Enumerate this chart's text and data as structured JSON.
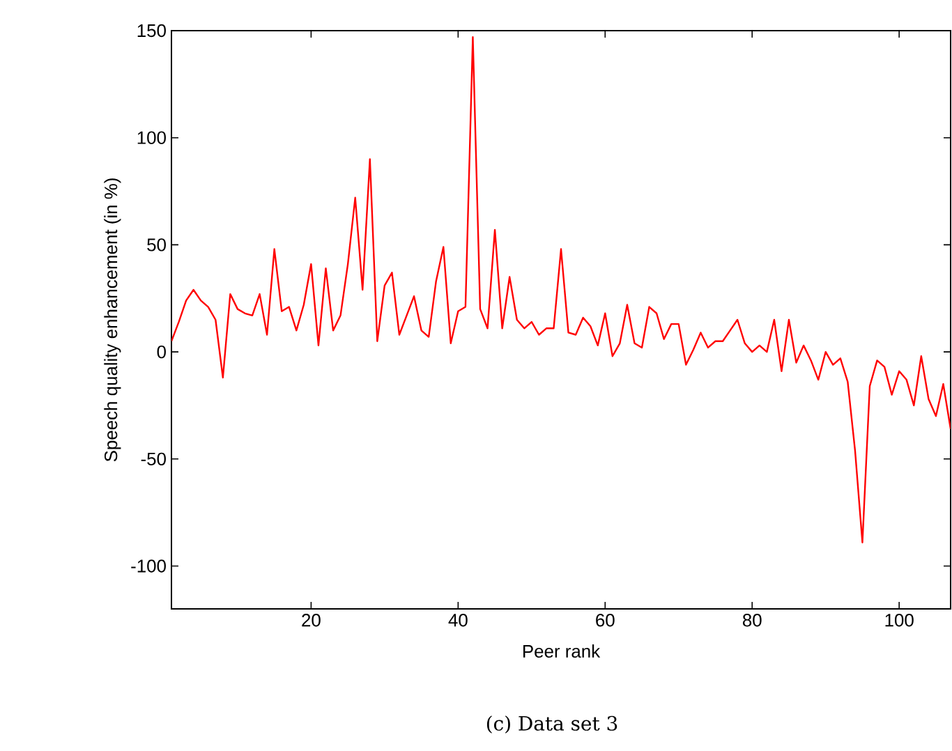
{
  "chart_data": {
    "type": "line",
    "xlabel": "Peer rank",
    "ylabel": "Speech quality enhancement (in %)",
    "annotations": [
      "(c)  Data set 3"
    ],
    "x": [
      1,
      2,
      3,
      4,
      5,
      6,
      7,
      8,
      9,
      10,
      11,
      12,
      13,
      14,
      15,
      16,
      17,
      18,
      19,
      20,
      21,
      22,
      23,
      24,
      25,
      26,
      27,
      28,
      29,
      30,
      31,
      32,
      33,
      34,
      35,
      36,
      37,
      38,
      39,
      40,
      41,
      42,
      43,
      44,
      45,
      46,
      47,
      48,
      49,
      50,
      51,
      52,
      53,
      54,
      55,
      56,
      57,
      58,
      59,
      60,
      61,
      62,
      63,
      64,
      65,
      66,
      67,
      68,
      69,
      70,
      71,
      72,
      73,
      74,
      75,
      76,
      77,
      78,
      79,
      80,
      81,
      82,
      83,
      84,
      85,
      86,
      87,
      88,
      89,
      90,
      91,
      92,
      93,
      94,
      95,
      96,
      97,
      98,
      99,
      100,
      101,
      102,
      103,
      104,
      105,
      106,
      107
    ],
    "series": [
      {
        "color": "#ff0000",
        "values": [
          5,
          14,
          24,
          29,
          24,
          21,
          15,
          -12,
          27,
          20,
          18,
          17,
          27,
          8,
          48,
          19,
          21,
          10,
          22,
          41,
          3,
          39,
          10,
          17,
          41,
          72,
          29,
          90,
          5,
          31,
          37,
          8,
          17,
          26,
          10,
          7,
          33,
          49,
          4,
          19,
          21,
          147,
          20,
          11,
          57,
          11,
          35,
          15,
          11,
          14,
          8,
          11,
          11,
          48,
          9,
          8,
          16,
          12,
          3,
          18,
          -2,
          4,
          22,
          4,
          2,
          21,
          18,
          6,
          13,
          13,
          -6,
          1,
          9,
          2,
          5,
          5,
          10,
          15,
          4,
          0,
          3,
          0,
          15,
          -9,
          15,
          -5,
          3,
          -4,
          -13,
          0,
          -6,
          -3,
          -14,
          -46,
          -89,
          -16,
          -4,
          -7,
          -20,
          -9,
          -13,
          -25,
          -2,
          -22,
          -30,
          -15,
          -36
        ]
      }
    ],
    "xlim": [
      1,
      107
    ],
    "ylim": [
      -120,
      150
    ],
    "xticks": [
      20,
      40,
      60,
      80,
      100
    ],
    "yticks": [
      -100,
      -50,
      0,
      50,
      100,
      150
    ],
    "grid": false,
    "marker": "none",
    "line_style": "solid"
  }
}
